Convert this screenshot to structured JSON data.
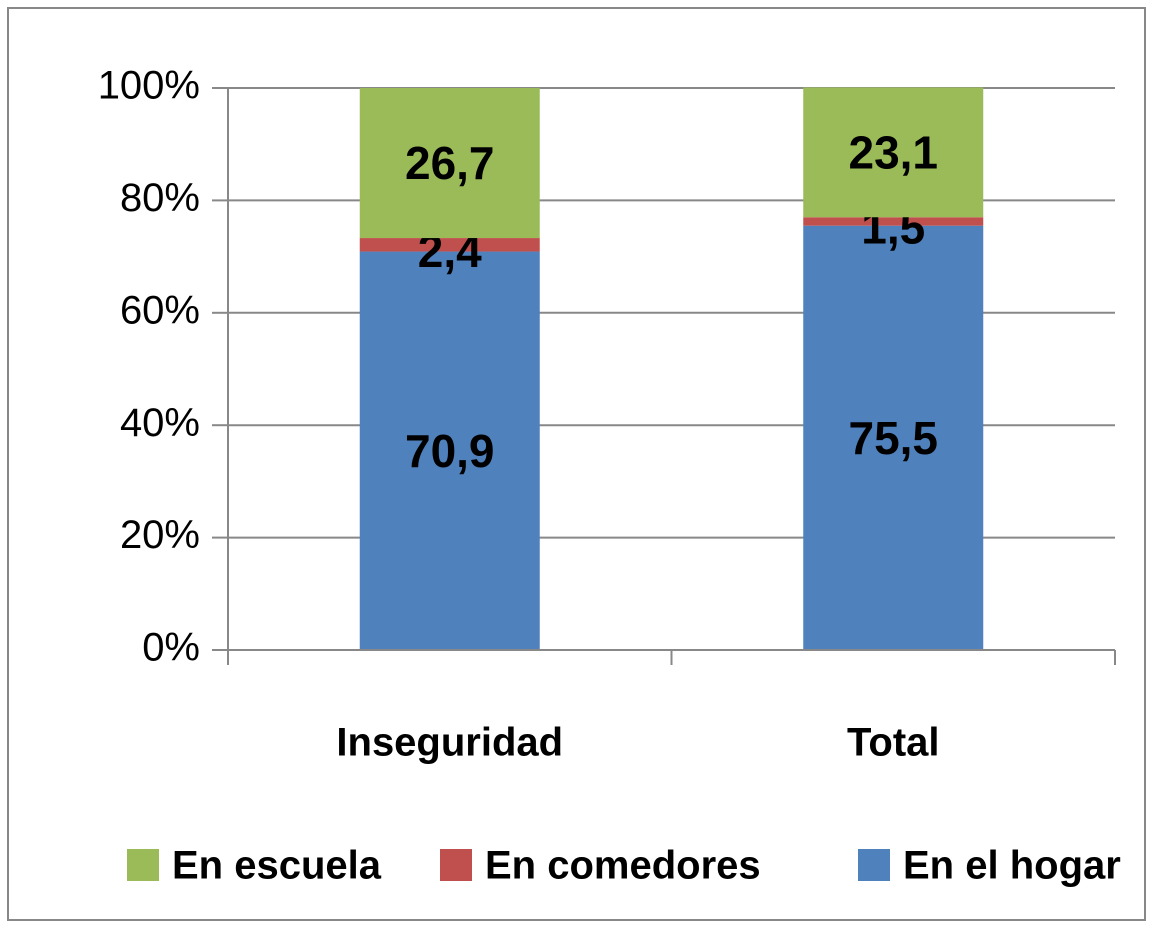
{
  "chart_data": {
    "type": "stacked_bar",
    "categories": [
      "Inseguridad",
      "Total"
    ],
    "series": [
      {
        "name": "En el hogar",
        "color": "#4f81bd",
        "values": [
          70.9,
          75.5
        ],
        "value_labels": [
          "70,9",
          "75,5"
        ]
      },
      {
        "name": "En comedores",
        "color": "#c0504d",
        "values": [
          2.4,
          1.5
        ],
        "value_labels": [
          "2,4",
          "1,5"
        ]
      },
      {
        "name": "En escuela",
        "color": "#9bbb59",
        "values": [
          26.7,
          23.1
        ],
        "value_labels": [
          "26,7",
          "23,1"
        ]
      }
    ],
    "ylim": [
      0,
      100
    ],
    "yticks": [
      {
        "value": 0,
        "label": "0%"
      },
      {
        "value": 20,
        "label": "20%"
      },
      {
        "value": 40,
        "label": "40%"
      },
      {
        "value": 60,
        "label": "60%"
      },
      {
        "value": 80,
        "label": "80%"
      },
      {
        "value": 100,
        "label": "100%"
      }
    ],
    "grid": true,
    "legend": "bottom"
  }
}
